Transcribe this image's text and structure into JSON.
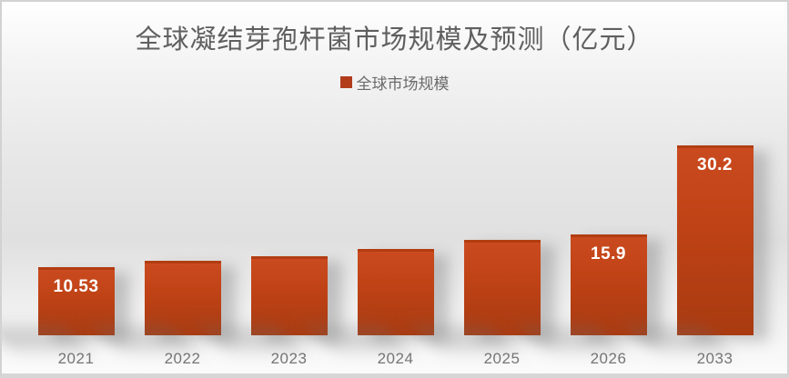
{
  "chart_data": {
    "type": "bar",
    "title": "全球凝结芽孢杆菌市场规模及预测（亿元）",
    "categories": [
      "2021",
      "2022",
      "2023",
      "2024",
      "2025",
      "2026",
      "2033"
    ],
    "series": [
      {
        "name": "全球市场规模",
        "values": [
          10.53,
          11.6,
          12.3,
          13.5,
          14.9,
          15.9,
          30.2
        ],
        "data_labels": [
          "10.53",
          "",
          "",
          "",
          "",
          "15.9",
          "30.2"
        ]
      }
    ],
    "xlabel": "",
    "ylabel": "",
    "ylim": [
      0,
      30.2
    ],
    "grid": "off",
    "legend_position": "top-center",
    "bar_color_top": "#CA4A1F",
    "bar_color_bottom": "#A93A10",
    "data_label_color": "#FFFFFF",
    "axis_label_color": "#757575",
    "title_color": "#5F5F5F"
  },
  "legend": {
    "label": "全球市场规模",
    "swatch_color": "#B23C1B"
  }
}
